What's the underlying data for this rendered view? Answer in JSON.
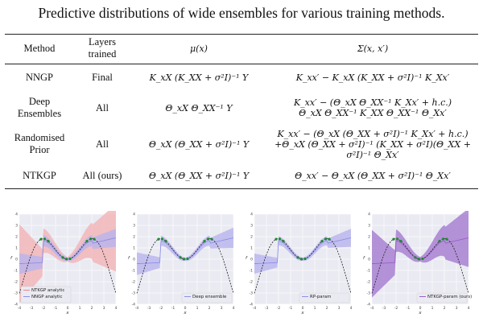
{
  "title": "Predictive distributions of wide ensembles for various training methods.",
  "table": {
    "headers": {
      "method": "Method",
      "layers": "Layers trained",
      "mu": "μ(x)",
      "sigma": "Σ(x, x′)"
    },
    "rows": [
      {
        "method": "NNGP",
        "layers": "Final",
        "mu": "K_xX (K_XX + σ²I)⁻¹ Y",
        "sigma": [
          "K_xx′ − K_xX (K_XX + σ²I)⁻¹ K_Xx′"
        ]
      },
      {
        "method": "Deep Ensembles",
        "layers": "All",
        "mu": "Θ_xX Θ_XX⁻¹ Y",
        "sigma": [
          "K_xx′ − (Θ_xX Θ_XX⁻¹ K_Xx′ + h.c.)",
          "Θ_xX Θ_XX⁻¹ K_XX Θ_XX⁻¹ Θ_Xx′"
        ]
      },
      {
        "method": "Randomised Prior",
        "layers": "All",
        "mu": "Θ_xX (Θ_XX + σ²I)⁻¹ Y",
        "sigma": [
          "K_xx′ − (Θ_xX (Θ_XX + σ²I)⁻¹ K_Xx′ + h.c.)",
          "+Θ_xX (Θ_XX + σ²I)⁻¹ (K_XX + σ²I)(Θ_XX + σ²I)⁻¹ Θ_Xx′"
        ]
      },
      {
        "method": "NTKGP",
        "layers": "All (ours)",
        "mu": "Θ_xX (Θ_XX + σ²I)⁻¹ Y",
        "sigma": [
          "Θ_xx′ − Θ_xX (Θ_XX + σ²I)⁻¹ Θ_Xx′"
        ]
      }
    ]
  },
  "chart_data": [
    {
      "type": "line",
      "xlabel": "x",
      "ylabel": "f",
      "xlim": [
        -4,
        4
      ],
      "ylim": [
        -4,
        4
      ],
      "x_ticks": [
        -4,
        -3,
        -2,
        -1,
        0,
        1,
        2,
        3,
        4
      ],
      "y_ticks": [
        -4,
        -3,
        -2,
        -1,
        0,
        1,
        2,
        3,
        4
      ],
      "legend_position": "bottom-left",
      "series": [
        {
          "name": "NTKGP analytic",
          "color": "#e8868a",
          "spread": [
            3.5,
            1.1,
            0.2,
            1.6,
            3.0
          ]
        },
        {
          "name": "NNGP analytic",
          "color": "#8f8fe8",
          "spread": [
            0.9,
            0.5,
            0.15,
            0.5,
            0.8
          ]
        }
      ]
    },
    {
      "type": "line",
      "xlabel": "x",
      "ylabel": "f",
      "xlim": [
        -4,
        4
      ],
      "ylim": [
        -4,
        4
      ],
      "x_ticks": [
        -4,
        -3,
        -2,
        -1,
        0,
        1,
        2,
        3,
        4
      ],
      "y_ticks": [
        -4,
        -3,
        -2,
        -1,
        0,
        1,
        2,
        3,
        4
      ],
      "legend_position": "bottom-right",
      "series": [
        {
          "name": "Deep ensemble",
          "color": "#8f8fe8",
          "spread": [
            1.0,
            0.45,
            0.15,
            0.45,
            0.9
          ]
        }
      ]
    },
    {
      "type": "line",
      "xlabel": "x",
      "ylabel": "f",
      "xlim": [
        -4,
        4
      ],
      "ylim": [
        -4,
        4
      ],
      "x_ticks": [
        -4,
        -3,
        -2,
        -1,
        0,
        1,
        2,
        3,
        4
      ],
      "y_ticks": [
        -4,
        -3,
        -2,
        -1,
        0,
        1,
        2,
        3,
        4
      ],
      "legend_position": "bottom-right",
      "series": [
        {
          "name": "RP-param",
          "color": "#8f8fe8",
          "spread": [
            0.9,
            0.4,
            0.15,
            0.4,
            0.8
          ]
        }
      ]
    },
    {
      "type": "line",
      "xlabel": "x",
      "ylabel": "f",
      "xlim": [
        -4,
        4
      ],
      "ylim": [
        -4,
        4
      ],
      "x_ticks": [
        -4,
        -3,
        -2,
        -1,
        0,
        1,
        2,
        3,
        4
      ],
      "y_ticks": [
        -4,
        -3,
        -2,
        -1,
        0,
        1,
        2,
        3,
        4
      ],
      "legend_position": "bottom-right",
      "series": [
        {
          "name": "NTKGP-param (ours)",
          "color": "#9b5fc8",
          "spread": [
            3.0,
            1.0,
            0.2,
            1.4,
            2.6
          ]
        }
      ]
    }
  ],
  "colors": {
    "analytic_band": "#f2b3b5",
    "param_band": "#b8b4ee",
    "overlap_band": "#a47ad0",
    "plot_bg": "#eaeaf2",
    "ground_truth": "#222222",
    "train_points": "#1f8a2f"
  }
}
